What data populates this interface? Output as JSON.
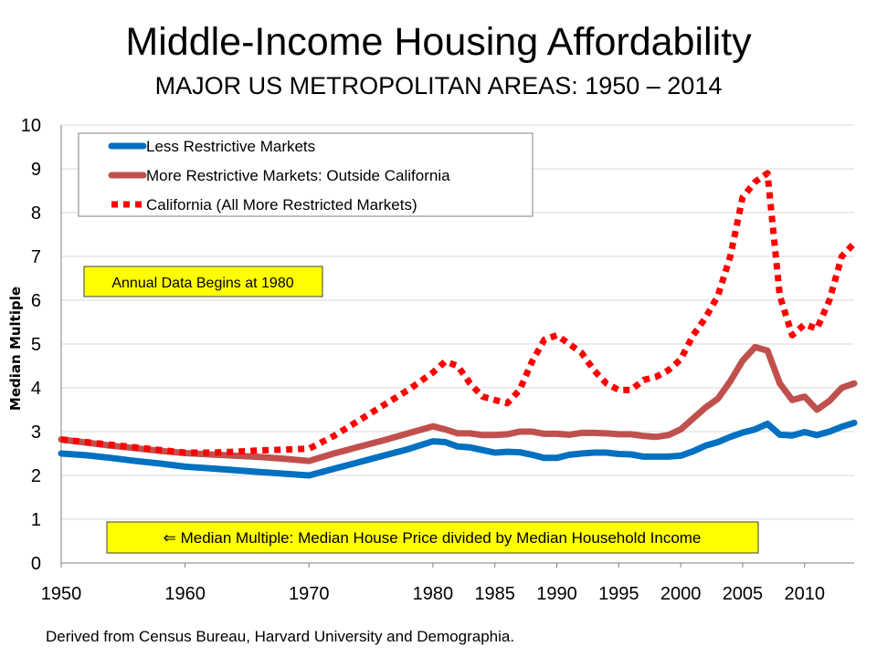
{
  "chart_data": {
    "type": "line",
    "title": "Middle-Income Housing Affordability",
    "subtitle": "MAJOR US METROPOLITAN AREAS: 1950 – 2014",
    "ylabel": "Median Multiple",
    "xlabel": "",
    "xlim": [
      1950,
      2014
    ],
    "ylim": [
      0,
      10
    ],
    "yticks": [
      "0",
      "1",
      "2",
      "3",
      "4",
      "5",
      "6",
      "7",
      "8",
      "9",
      "10"
    ],
    "xticks": [
      "1950",
      "1960",
      "1970",
      "1980",
      "1985",
      "1990",
      "1995",
      "2000",
      "2005",
      "2010"
    ],
    "grid": "horizontal",
    "legend_position": "top-left",
    "series": [
      {
        "name": "Less Restrictive Markets",
        "color": "#0070C0",
        "style": "solid",
        "x": [
          1950,
          1952,
          1954,
          1956,
          1958,
          1960,
          1962,
          1964,
          1966,
          1968,
          1970,
          1972,
          1974,
          1976,
          1978,
          1980,
          1981,
          1982,
          1983,
          1984,
          1985,
          1986,
          1987,
          1988,
          1989,
          1990,
          1991,
          1992,
          1993,
          1994,
          1995,
          1996,
          1997,
          1998,
          1999,
          2000,
          2001,
          2002,
          2003,
          2004,
          2005,
          2006,
          2007,
          2008,
          2009,
          2010,
          2011,
          2012,
          2013,
          2014
        ],
        "y": [
          2.5,
          2.46,
          2.4,
          2.33,
          2.27,
          2.2,
          2.16,
          2.12,
          2.08,
          2.04,
          2.0,
          2.15,
          2.3,
          2.45,
          2.6,
          2.78,
          2.76,
          2.66,
          2.64,
          2.58,
          2.52,
          2.54,
          2.53,
          2.47,
          2.4,
          2.4,
          2.47,
          2.5,
          2.52,
          2.52,
          2.49,
          2.48,
          2.43,
          2.43,
          2.43,
          2.45,
          2.55,
          2.68,
          2.76,
          2.88,
          2.98,
          3.05,
          3.18,
          2.93,
          2.91,
          2.99,
          2.92,
          3.0,
          3.11,
          3.2
        ]
      },
      {
        "name": "More Restrictive Markets: Outside California",
        "color": "#C0504D",
        "style": "solid",
        "x": [
          1950,
          1952,
          1954,
          1956,
          1958,
          1960,
          1962,
          1964,
          1966,
          1968,
          1970,
          1972,
          1974,
          1976,
          1978,
          1980,
          1981,
          1982,
          1983,
          1984,
          1985,
          1986,
          1987,
          1988,
          1989,
          1990,
          1991,
          1992,
          1993,
          1994,
          1995,
          1996,
          1997,
          1998,
          1999,
          2000,
          2001,
          2002,
          2003,
          2004,
          2005,
          2006,
          2007,
          2008,
          2009,
          2010,
          2011,
          2012,
          2013,
          2014
        ],
        "y": [
          2.82,
          2.75,
          2.68,
          2.62,
          2.56,
          2.51,
          2.48,
          2.45,
          2.42,
          2.38,
          2.33,
          2.5,
          2.65,
          2.8,
          2.96,
          3.12,
          3.05,
          2.96,
          2.96,
          2.92,
          2.92,
          2.94,
          3.0,
          3.0,
          2.95,
          2.95,
          2.93,
          2.97,
          2.97,
          2.96,
          2.94,
          2.94,
          2.9,
          2.88,
          2.92,
          3.05,
          3.3,
          3.55,
          3.75,
          4.15,
          4.62,
          4.93,
          4.85,
          4.1,
          3.72,
          3.8,
          3.5,
          3.7,
          4.0,
          4.1
        ]
      },
      {
        "name": "California (All More Restricted Markets)",
        "color": "#FF0000",
        "style": "dotted",
        "x": [
          1950,
          1952,
          1954,
          1956,
          1958,
          1960,
          1962,
          1964,
          1966,
          1968,
          1970,
          1972,
          1974,
          1976,
          1978,
          1980,
          1981,
          1982,
          1983,
          1984,
          1985,
          1986,
          1987,
          1988,
          1989,
          1990,
          1991,
          1992,
          1993,
          1994,
          1995,
          1996,
          1997,
          1998,
          1999,
          2000,
          2001,
          2002,
          2003,
          2004,
          2005,
          2006,
          2007,
          2008,
          2009,
          2010,
          2011,
          2012,
          2013,
          2014
        ],
        "y": [
          2.82,
          2.76,
          2.7,
          2.64,
          2.58,
          2.52,
          2.52,
          2.54,
          2.57,
          2.59,
          2.61,
          2.9,
          3.25,
          3.6,
          3.95,
          4.35,
          4.6,
          4.5,
          4.1,
          3.8,
          3.72,
          3.65,
          3.95,
          4.6,
          5.1,
          5.2,
          5.0,
          4.8,
          4.4,
          4.1,
          3.95,
          3.95,
          4.18,
          4.25,
          4.4,
          4.65,
          5.2,
          5.6,
          6.1,
          7.0,
          8.35,
          8.7,
          8.9,
          6.1,
          5.2,
          5.45,
          5.35,
          6.0,
          7.0,
          7.3
        ]
      }
    ],
    "annotations": [
      "Annual Data Begins at 1980",
      "⇐ Median Multiple: Median House Price divided by Median Household Income"
    ],
    "annotation_parts": {
      "arrow": "🡄",
      "text": "Median Multiple: Median House Price divided by Median Household Income"
    }
  },
  "source_note": "Derived from Census Bureau, Harvard University and Demographia.",
  "colors": {
    "annotation_fill": "#FFFF00",
    "grid": "#d9d9d9",
    "axis": "#808080"
  }
}
